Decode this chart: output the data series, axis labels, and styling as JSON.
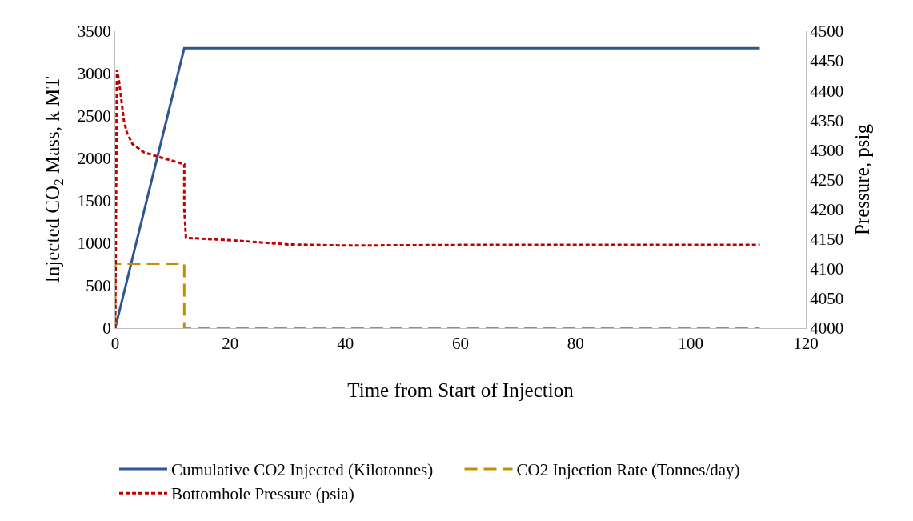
{
  "chart_data": {
    "type": "line",
    "xlabel": "Time from Start of Injection",
    "ylabel": "Injected CO$_{2}$ Mass, k MT",
    "y2label": "Pressure, psig",
    "xlim": [
      0,
      120
    ],
    "xticks": [
      0,
      20,
      40,
      60,
      80,
      100,
      120
    ],
    "ylim": [
      0,
      3500
    ],
    "yticks": [
      0,
      500,
      1000,
      1500,
      2000,
      2500,
      3000,
      3500
    ],
    "y2lim": [
      4000,
      4500
    ],
    "y2ticks": [
      4000,
      4050,
      4100,
      4150,
      4200,
      4250,
      4300,
      4350,
      4400,
      4450,
      4500
    ],
    "legend": "bottom",
    "marker": "none",
    "series": [
      {
        "name": "Cumulative CO2 Injected (Kilotonnes)",
        "color": "#2f5597",
        "line_style": "solid",
        "x": [
          0,
          12,
          112
        ],
        "values": [
          0,
          3300,
          3300
        ]
      },
      {
        "name": "CO2 Injection Rate (Tonnes/day)",
        "color": "#bf9000",
        "line_style": "dashed",
        "x": [
          0,
          0,
          12,
          12,
          112
        ],
        "values": [
          0,
          760,
          760,
          0,
          0
        ]
      },
      {
        "name": "Bottomhole Pressure (psia)",
        "color": "#c00000",
        "line_style": "dotted",
        "axis": "y2",
        "x": [
          0,
          0.3,
          0.6,
          1,
          1.5,
          2,
          3,
          5,
          8,
          12,
          12,
          12.3,
          20,
          30,
          40,
          60,
          80,
          112
        ],
        "values": [
          4000,
          4435,
          4420,
          4390,
          4350,
          4330,
          4310,
          4296,
          4287,
          4276,
          4200,
          4152,
          4148,
          4141,
          4139,
          4140,
          4140,
          4140
        ]
      }
    ]
  }
}
